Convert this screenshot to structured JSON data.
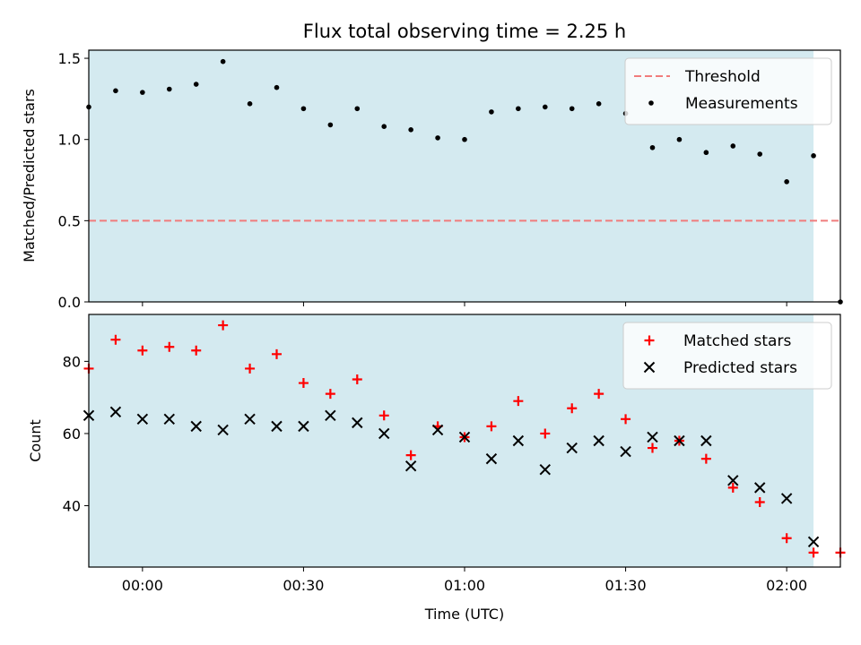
{
  "chart_data": [
    {
      "type": "scatter",
      "title": "Flux total observing time = 2.25 h",
      "ylabel": "Matched/Predicted stars",
      "xlabel": "",
      "xlim": [
        "-00:10",
        "02:10"
      ],
      "ylim": [
        0.0,
        1.55
      ],
      "x_ticks": [
        "00:00",
        "00:30",
        "01:00",
        "01:30",
        "02:00"
      ],
      "y_ticks": [
        "0.0",
        "0.5",
        "1.0",
        "1.5"
      ],
      "shaded_region": [
        "-00:10",
        "02:05"
      ],
      "shaded_color": "#d4eaf0",
      "legend_position": "upper right",
      "threshold": {
        "name": "Threshold",
        "value": 0.5,
        "x_range": [
          "-00:10",
          "02:10"
        ],
        "color": "#f07c7c"
      },
      "series": [
        {
          "name": "Measurements",
          "marker": "dot",
          "color": "#000000",
          "x": [
            "-00:10",
            "-00:05",
            "00:00",
            "00:05",
            "00:10",
            "00:15",
            "00:20",
            "00:25",
            "00:30",
            "00:35",
            "00:40",
            "00:45",
            "00:50",
            "00:55",
            "01:00",
            "01:05",
            "01:10",
            "01:15",
            "01:20",
            "01:25",
            "01:30",
            "01:35",
            "01:40",
            "01:45",
            "01:50",
            "01:55",
            "02:00",
            "02:05",
            "02:10"
          ],
          "values": [
            1.2,
            1.3,
            1.29,
            1.31,
            1.34,
            1.48,
            1.22,
            1.32,
            1.19,
            1.09,
            1.19,
            1.08,
            1.06,
            1.01,
            1.0,
            1.17,
            1.19,
            1.2,
            1.19,
            1.22,
            1.16,
            0.95,
            1.0,
            0.92,
            0.96,
            0.91,
            0.74,
            0.9,
            0.0
          ]
        }
      ]
    },
    {
      "type": "scatter",
      "title": "",
      "xlabel": "Time (UTC)",
      "ylabel": "Count",
      "xlim": [
        "-00:10",
        "02:10"
      ],
      "ylim": [
        23,
        93
      ],
      "x_ticks": [
        "00:00",
        "00:30",
        "01:00",
        "01:30",
        "02:00"
      ],
      "y_ticks": [
        "40",
        "60",
        "80"
      ],
      "shaded_region": [
        "-00:10",
        "02:05"
      ],
      "shaded_color": "#d4eaf0",
      "legend_position": "upper right",
      "series": [
        {
          "name": "Matched stars",
          "marker": "plus",
          "color": "#ff0000",
          "x": [
            "-00:10",
            "-00:05",
            "00:00",
            "00:05",
            "00:10",
            "00:15",
            "00:20",
            "00:25",
            "00:30",
            "00:35",
            "00:40",
            "00:45",
            "00:50",
            "00:55",
            "01:00",
            "01:05",
            "01:10",
            "01:15",
            "01:20",
            "01:25",
            "01:30",
            "01:35",
            "01:40",
            "01:45",
            "01:50",
            "01:55",
            "02:00",
            "02:05",
            "02:10"
          ],
          "values": [
            78,
            86,
            83,
            84,
            83,
            90,
            78,
            82,
            74,
            71,
            75,
            65,
            54,
            62,
            59,
            62,
            69,
            60,
            67,
            71,
            64,
            56,
            58,
            53,
            45,
            41,
            31,
            27,
            27
          ]
        },
        {
          "name": "Predicted stars",
          "marker": "x",
          "color": "#000000",
          "x": [
            "-00:10",
            "-00:05",
            "00:00",
            "00:05",
            "00:10",
            "00:15",
            "00:20",
            "00:25",
            "00:30",
            "00:35",
            "00:40",
            "00:45",
            "00:50",
            "00:55",
            "01:00",
            "01:05",
            "01:10",
            "01:15",
            "01:20",
            "01:25",
            "01:30",
            "01:35",
            "01:40",
            "01:45",
            "01:50",
            "01:55",
            "02:00",
            "02:05"
          ],
          "values": [
            65,
            66,
            64,
            64,
            62,
            61,
            64,
            62,
            62,
            65,
            63,
            60,
            51,
            61,
            59,
            53,
            58,
            50,
            56,
            58,
            55,
            59,
            58,
            58,
            47,
            45,
            42,
            30
          ]
        }
      ]
    }
  ]
}
